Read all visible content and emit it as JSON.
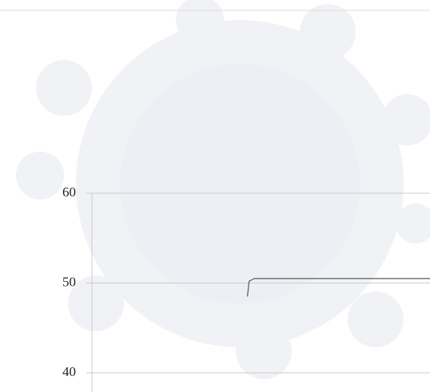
{
  "chart_data": {
    "type": "line",
    "x": [
      0.46,
      0.465,
      0.48,
      1
    ],
    "xlim": [
      0,
      1
    ],
    "series": [
      {
        "color": "#5a5a5a",
        "values": [
          48.5,
          50.2,
          50.5,
          50.5
        ]
      }
    ],
    "ylim": [
      38,
      60
    ],
    "yticks": [
      60,
      50,
      40
    ],
    "grid": true
  }
}
